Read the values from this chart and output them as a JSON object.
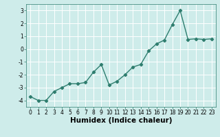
{
  "x": [
    0,
    1,
    2,
    3,
    4,
    5,
    6,
    7,
    8,
    9,
    10,
    11,
    12,
    13,
    14,
    15,
    16,
    17,
    18,
    19,
    20,
    21,
    22,
    23
  ],
  "y": [
    -3.7,
    -4.0,
    -4.0,
    -3.3,
    -3.0,
    -2.7,
    -2.7,
    -2.6,
    -1.8,
    -1.2,
    -2.8,
    -2.5,
    -2.0,
    -1.4,
    -1.2,
    -0.15,
    0.4,
    0.7,
    1.9,
    3.0,
    0.75,
    0.8,
    0.75,
    0.8
  ],
  "line_color": "#2e7d6e",
  "marker": "D",
  "markersize": 2.2,
  "linewidth": 1.0,
  "xlabel": "Humidex (Indice chaleur)",
  "ylabel": "",
  "xlim": [
    -0.5,
    23.5
  ],
  "ylim": [
    -4.5,
    3.5
  ],
  "yticks": [
    -4,
    -3,
    -2,
    -1,
    0,
    1,
    2,
    3
  ],
  "xticks": [
    0,
    1,
    2,
    3,
    4,
    5,
    6,
    7,
    8,
    9,
    10,
    11,
    12,
    13,
    14,
    15,
    16,
    17,
    18,
    19,
    20,
    21,
    22,
    23
  ],
  "bg_color": "#ceecea",
  "grid_color": "#ffffff",
  "tick_fontsize": 5.5,
  "xlabel_fontsize": 7.5
}
